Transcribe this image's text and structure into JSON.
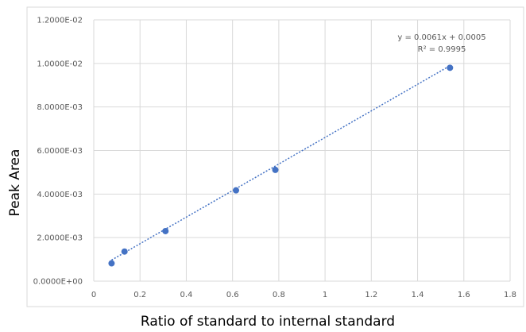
{
  "chart_data": {
    "type": "scatter",
    "title": "",
    "xlabel": "Ratio of standard to internal standard",
    "ylabel": "Peak Area",
    "xlim": [
      0,
      1.8
    ],
    "ylim": [
      0,
      0.012
    ],
    "x_ticks": [
      0,
      0.2,
      0.4,
      0.6,
      0.8,
      1,
      1.2,
      1.4,
      1.6,
      1.8
    ],
    "x_tick_labels": [
      "0",
      "0.2",
      "0.4",
      "0.6",
      "0.8",
      "1",
      "1.2",
      "1.4",
      "1.6",
      "1.8"
    ],
    "y_ticks": [
      0,
      0.002,
      0.004,
      0.006,
      0.008,
      0.01,
      0.012
    ],
    "y_tick_labels": [
      "0.0000E+00",
      "2.0000E-03",
      "4.0000E-03",
      "6.0000E-03",
      "8.0000E-03",
      "1.0000E-02",
      "1.2000E-02"
    ],
    "grid": true,
    "series": [
      {
        "x": [
          0.077,
          0.133,
          0.31,
          0.615,
          0.785,
          1.54
        ],
        "y": [
          0.00082,
          0.00136,
          0.0023,
          0.00417,
          0.00511,
          0.0098
        ]
      }
    ],
    "trendline": {
      "style": "dotted",
      "slope": 0.0061,
      "intercept": 0.0005,
      "x_range": [
        0.077,
        1.54
      ]
    },
    "annotations": {
      "equation": "y = 0.0061x + 0.0005",
      "r_squared": "R² = 0.9995"
    },
    "colors": {
      "marker": "#4472C4",
      "trendline": "#4472C4",
      "grid": "#d9d9d9",
      "axis_text": "#595959",
      "label_text": "#000000"
    }
  }
}
